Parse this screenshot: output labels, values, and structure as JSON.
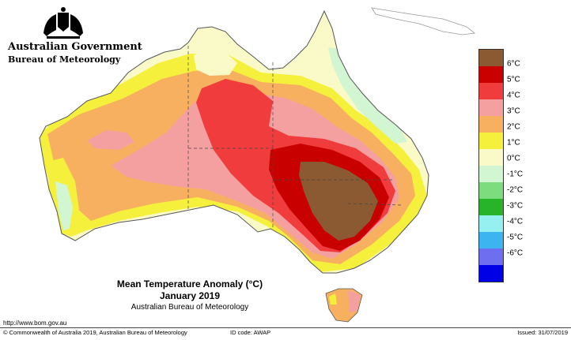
{
  "header": {
    "org_name": "Australian Government",
    "agency_name": "Bureau of Meteorology"
  },
  "map": {
    "title": "Mean Temperature Anomaly (°C)",
    "period": "January 2019",
    "source": "Australian Bureau of Meteorology",
    "region": "Australia"
  },
  "legend": {
    "items": [
      {
        "label": "6°C",
        "color": "#8c5a32"
      },
      {
        "label": "5°C",
        "color": "#c80000"
      },
      {
        "label": "4°C",
        "color": "#f03c3c"
      },
      {
        "label": "3°C",
        "color": "#f5a0a0"
      },
      {
        "label": "2°C",
        "color": "#f6b060"
      },
      {
        "label": "1°C",
        "color": "#f5f03c"
      },
      {
        "label": "0°C",
        "color": "#fafac8"
      },
      {
        "label": "-1°C",
        "color": "#d2f5d2"
      },
      {
        "label": "-2°C",
        "color": "#7ddc7d"
      },
      {
        "label": "-3°C",
        "color": "#28b428"
      },
      {
        "label": "-4°C",
        "color": "#96f0f0"
      },
      {
        "label": "-5°C",
        "color": "#3cb4f0"
      },
      {
        "label": "-6°C",
        "color": "#6e6ef0"
      },
      {
        "label": "",
        "color": "#0000e6"
      }
    ]
  },
  "footer": {
    "url": "http://www.bom.gov.au",
    "copyright": "© Commonwealth of Australia 2019, Australian Bureau of Meteorology",
    "id_code": "ID code: AWAP",
    "issued": "Issued: 31/07/2019"
  }
}
